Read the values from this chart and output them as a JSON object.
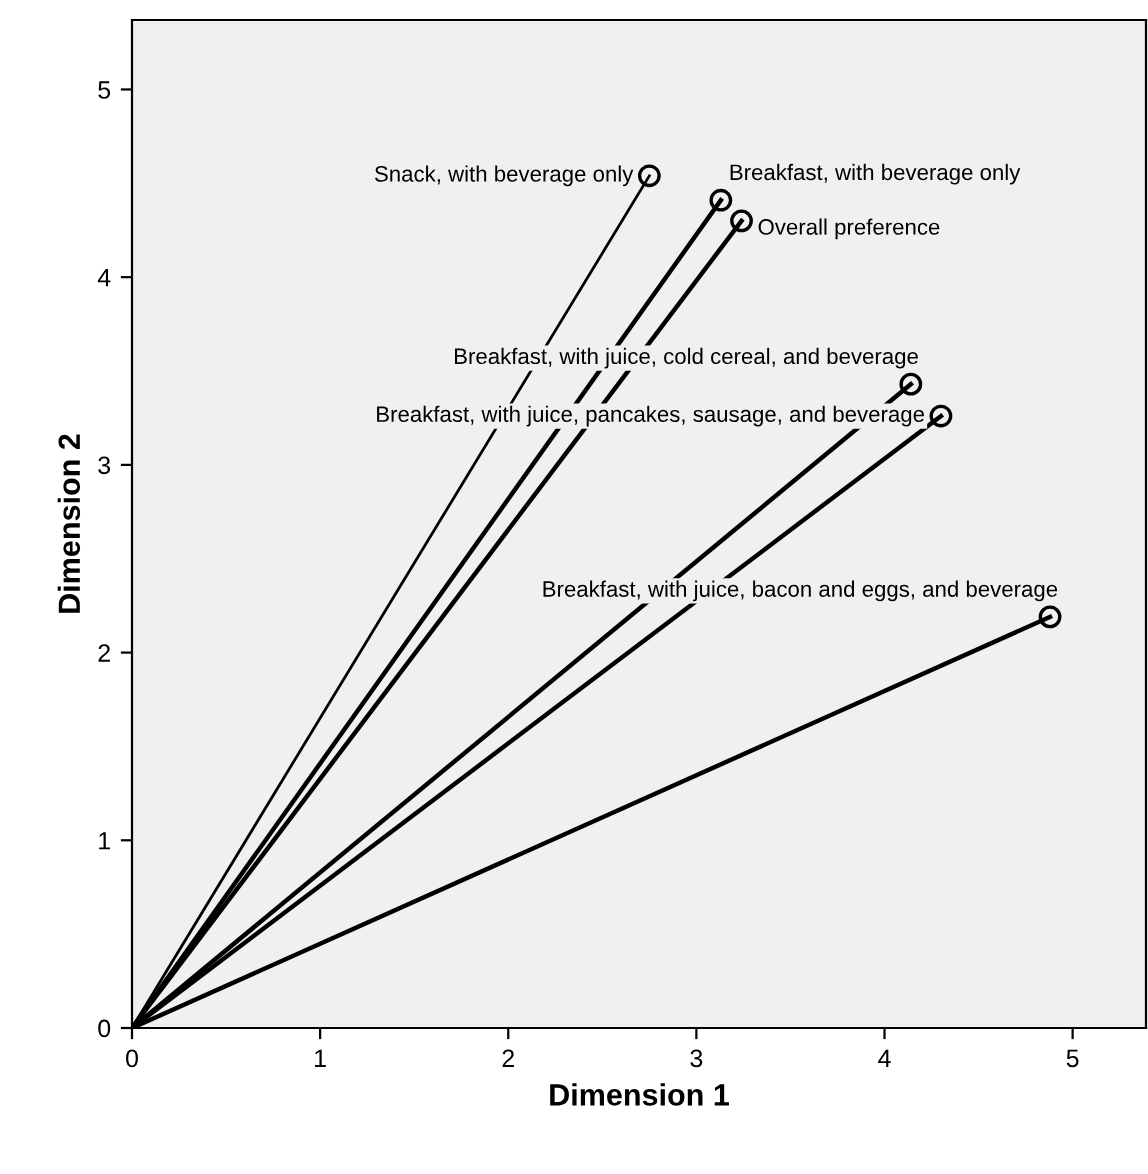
{
  "chart_data": {
    "type": "line",
    "xlabel": "Dimension 1",
    "ylabel": "Dimension 2",
    "xlim": [
      0,
      5.39
    ],
    "ylim": [
      0,
      5.37
    ],
    "xticks": [
      0,
      1,
      2,
      3,
      4,
      5
    ],
    "yticks": [
      0,
      1,
      2,
      3,
      4,
      5
    ],
    "grid": false,
    "legend": false,
    "marker": "circle",
    "line_style": "solid",
    "series": [
      {
        "name": "Snack, with beverage only",
        "color": "#000000",
        "x": [
          0,
          2.75
        ],
        "values": [
          0,
          4.54
        ]
      },
      {
        "name": "Breakfast, with beverage only",
        "color": "#000000",
        "x": [
          0,
          3.13
        ],
        "values": [
          0,
          4.41
        ]
      },
      {
        "name": "Overall preference",
        "color": "#000000",
        "x": [
          0,
          3.24
        ],
        "values": [
          0,
          4.3
        ]
      },
      {
        "name": "Breakfast, with juice, cold cereal, and beverage",
        "color": "#000000",
        "x": [
          0,
          4.14
        ],
        "values": [
          0,
          3.43
        ]
      },
      {
        "name": "Breakfast, with juice, pancakes, sausage, and beverage",
        "color": "#000000",
        "x": [
          0,
          4.3
        ],
        "values": [
          0,
          3.26
        ]
      },
      {
        "name": "Breakfast, with juice, bacon and eggs, and beverage",
        "color": "#000000",
        "x": [
          0,
          4.88
        ],
        "values": [
          0,
          2.19
        ]
      }
    ]
  }
}
